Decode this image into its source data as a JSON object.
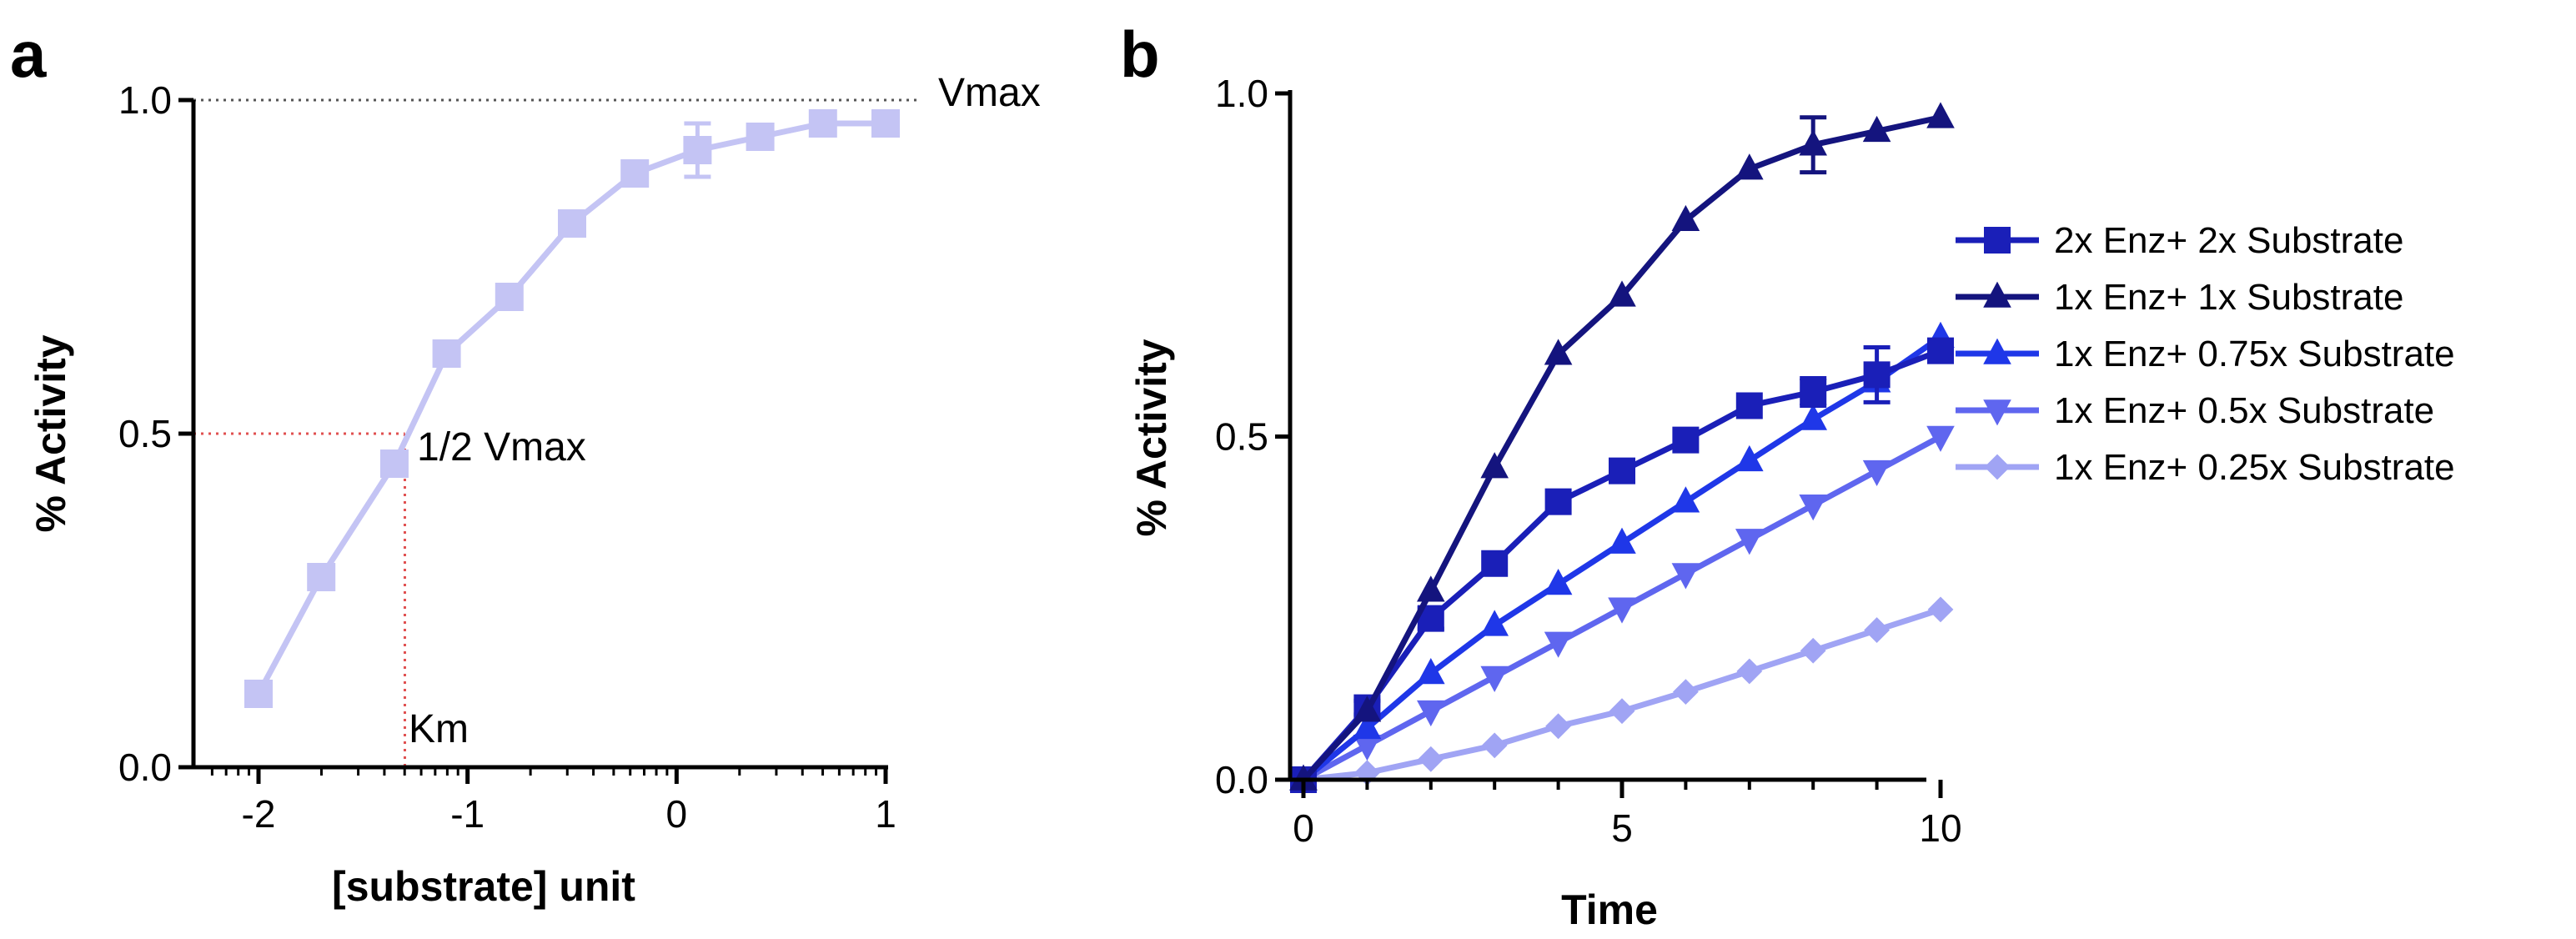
{
  "chart_data": [
    {
      "panel_label": "a",
      "type": "line",
      "xlabel": "[substrate] unit",
      "ylabel": "% Activity",
      "xlim": [
        -2.3,
        1
      ],
      "ylim": [
        0,
        1
      ],
      "xticks": [
        "-2",
        "-1",
        "0",
        "1"
      ],
      "yticks": [
        "0.0",
        "0.5",
        "1.0"
      ],
      "color": "#c4c4f4",
      "series": [
        {
          "name": "activity",
          "x": [
            -2.0,
            -1.7,
            -1.35,
            -1.1,
            -0.8,
            -0.5,
            -0.2,
            0.1,
            0.4,
            0.7,
            1.0
          ],
          "y": [
            0.11,
            0.285,
            0.455,
            0.62,
            0.705,
            0.815,
            0.89,
            0.925,
            0.945,
            0.965,
            0.965
          ],
          "error": [
            0,
            0,
            0,
            0,
            0,
            0,
            0,
            0.04,
            0,
            0,
            0
          ]
        }
      ],
      "annotations": {
        "vmax": "Vmax",
        "half_vmax": "1/2 Vmax",
        "km": "Km",
        "vmax_y": 1.0,
        "half_y": 0.5,
        "km_x": -1.3
      }
    },
    {
      "panel_label": "b",
      "type": "line",
      "xlabel": "Time",
      "ylabel": "% Activity",
      "xlim": [
        0,
        10
      ],
      "ylim": [
        0,
        1
      ],
      "xticks": [
        "0",
        "5",
        "10"
      ],
      "yticks": [
        "0.0",
        "0.5",
        "1.0"
      ],
      "x": [
        0,
        1,
        2,
        3,
        4,
        5,
        6,
        7,
        8,
        9,
        10
      ],
      "series": [
        {
          "name": "2x Enz+ 2x Substrate",
          "marker": "square",
          "color": "#1a1fb8",
          "y": [
            0,
            0.105,
            0.235,
            0.315,
            0.405,
            0.45,
            0.495,
            0.545,
            0.565,
            0.59,
            0.625
          ],
          "error": [
            0,
            0.01,
            0.015,
            0,
            0,
            0,
            0,
            0,
            0.02,
            0.04,
            0.015
          ]
        },
        {
          "name": "1x Enz+ 1x Substrate",
          "marker": "triangle-up",
          "color": "#14147e",
          "y": [
            0,
            0.1,
            0.275,
            0.455,
            0.62,
            0.705,
            0.815,
            0.89,
            0.925,
            0.945,
            0.965
          ],
          "error": [
            0,
            0,
            0,
            0,
            0,
            0,
            0,
            0,
            0.04,
            0,
            0
          ]
        },
        {
          "name": "1x Enz+ 0.75x Substrate",
          "marker": "triangle-up",
          "color": "#1f37e8",
          "y": [
            0,
            0.075,
            0.155,
            0.225,
            0.285,
            0.345,
            0.405,
            0.465,
            0.525,
            0.58,
            0.645
          ],
          "error": [
            0,
            0,
            0,
            0,
            0,
            0,
            0,
            0,
            0,
            0,
            0
          ]
        },
        {
          "name": "1x Enz+ 0.5x Substrate",
          "marker": "triangle-down",
          "color": "#5f66ef",
          "y": [
            0,
            0.05,
            0.1,
            0.15,
            0.2,
            0.25,
            0.3,
            0.35,
            0.4,
            0.45,
            0.5
          ],
          "error": [
            0,
            0,
            0,
            0,
            0,
            0,
            0,
            0,
            0,
            0,
            0
          ]
        },
        {
          "name": "1x Enz+ 0.25x Substrate",
          "marker": "diamond",
          "color": "#a0a4f4",
          "y": [
            0,
            0.01,
            0.03,
            0.05,
            0.078,
            0.1,
            0.128,
            0.158,
            0.188,
            0.218,
            0.248
          ],
          "error": [
            0,
            0,
            0,
            0,
            0,
            0,
            0,
            0,
            0,
            0,
            0
          ]
        }
      ],
      "legend_position": "right"
    }
  ]
}
